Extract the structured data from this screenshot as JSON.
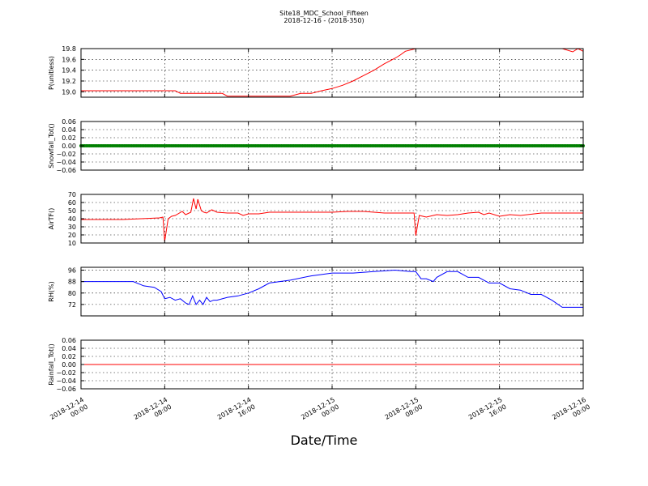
{
  "figure": {
    "title": "Site18_MDC_School_Fifteen",
    "subtitle": "2018-12-16 - (2018-350)",
    "xlabel": "Date/Time"
  },
  "chart_data": [
    {
      "type": "line",
      "ylabel": "P(unitless)",
      "color": "#ff0000",
      "ylim": [
        18.9,
        19.8
      ],
      "yticks": [
        19.0,
        19.2,
        19.4,
        19.6,
        19.8
      ],
      "ytick_labels": [
        "19.0",
        "19.2",
        "19.4",
        "19.6",
        "19.8"
      ],
      "grid": true,
      "x": [
        "2018-12-14 00:00",
        "2018-12-14 07:00",
        "2018-12-14 08:00",
        "2018-12-14 09:00",
        "2018-12-14 09:30",
        "2018-12-14 11:00",
        "2018-12-14 12:00",
        "2018-12-14 13:00",
        "2018-12-14 13:30",
        "2018-12-14 14:00",
        "2018-12-14 15:00",
        "2018-12-14 18:00",
        "2018-12-14 20:00",
        "2018-12-14 21:00",
        "2018-12-14 22:00",
        "2018-12-14 23:00",
        "2018-12-15 00:00",
        "2018-12-15 01:00",
        "2018-12-15 02:00",
        "2018-12-15 03:00",
        "2018-12-15 04:00",
        "2018-12-15 05:00",
        "2018-12-15 06:00",
        "2018-12-15 06:30",
        "2018-12-15 07:00",
        "2018-12-15 08:00",
        "2018-12-15 12:00",
        "2018-12-15 18:00",
        "2018-12-15 22:00",
        "2018-12-15 23:00",
        "2018-12-15 23:30",
        "2018-12-16 00:00"
      ],
      "y": [
        19.02,
        19.02,
        19.02,
        19.02,
        18.97,
        18.97,
        18.97,
        18.97,
        18.97,
        18.92,
        18.92,
        18.92,
        18.92,
        18.97,
        18.97,
        19.02,
        19.06,
        19.12,
        19.2,
        19.3,
        19.4,
        19.52,
        19.62,
        19.68,
        19.75,
        19.8,
        19.8,
        19.8,
        19.8,
        19.74,
        19.8,
        19.75
      ]
    },
    {
      "type": "scatter",
      "ylabel": "Snowfall_Tot()",
      "color": "#008000",
      "ylim": [
        -0.06,
        0.06
      ],
      "yticks": [
        -0.06,
        -0.04,
        -0.02,
        0.0,
        0.02,
        0.04,
        0.06
      ],
      "ytick_labels": [
        "−0.06",
        "−0.04",
        "−0.02",
        "0.00",
        "0.02",
        "0.04",
        "0.06"
      ],
      "grid": true,
      "x": [
        "2018-12-14 00:00",
        "2018-12-16 00:00"
      ],
      "y": [
        0.0,
        0.0
      ],
      "note_marker_every_minutes": 10
    },
    {
      "type": "line",
      "ylabel": "AirTF()",
      "color": "#ff0000",
      "ylim": [
        10,
        70
      ],
      "yticks": [
        10,
        20,
        30,
        40,
        50,
        60,
        70
      ],
      "ytick_labels": [
        "10",
        "20",
        "30",
        "40",
        "50",
        "60",
        "70"
      ],
      "grid": true,
      "x": [
        "2018-12-14 00:00",
        "2018-12-14 04:00",
        "2018-12-14 07:30",
        "2018-12-14 07:50",
        "2018-12-14 08:00",
        "2018-12-14 08:20",
        "2018-12-14 08:40",
        "2018-12-14 09:00",
        "2018-12-14 09:40",
        "2018-12-14 10:00",
        "2018-12-14 10:30",
        "2018-12-14 10:45",
        "2018-12-14 11:00",
        "2018-12-14 11:10",
        "2018-12-14 11:30",
        "2018-12-14 11:45",
        "2018-12-14 12:00",
        "2018-12-14 12:30",
        "2018-12-14 13:00",
        "2018-12-14 14:00",
        "2018-12-14 15:00",
        "2018-12-14 15:30",
        "2018-12-14 16:00",
        "2018-12-14 17:00",
        "2018-12-14 18:00",
        "2018-12-14 20:00",
        "2018-12-15 00:00",
        "2018-12-15 01:30",
        "2018-12-15 03:00",
        "2018-12-15 05:00",
        "2018-12-15 07:50",
        "2018-12-15 08:00",
        "2018-12-15 08:20",
        "2018-12-15 09:00",
        "2018-12-15 10:00",
        "2018-12-15 11:00",
        "2018-12-15 12:00",
        "2018-12-15 13:00",
        "2018-12-15 14:00",
        "2018-12-15 14:30",
        "2018-12-15 15:00",
        "2018-12-15 16:00",
        "2018-12-15 17:00",
        "2018-12-15 18:00",
        "2018-12-15 20:00",
        "2018-12-15 22:00",
        "2018-12-16 00:00"
      ],
      "y": [
        39,
        39,
        41,
        42,
        12,
        40,
        43,
        44,
        49,
        45,
        48,
        65,
        52,
        64,
        50,
        48,
        47,
        51,
        48,
        47,
        47,
        44,
        46,
        46,
        48,
        48,
        48,
        49,
        49,
        47,
        47,
        19,
        44,
        42,
        45,
        44,
        45,
        47,
        48,
        45,
        47,
        43,
        45,
        44,
        47,
        47,
        47
      ]
    },
    {
      "type": "line",
      "ylabel": "RH(%)",
      "color": "#0000ff",
      "ylim": [
        64,
        98
      ],
      "yticks": [
        72,
        80,
        88,
        96
      ],
      "ytick_labels": [
        "72",
        "80",
        "88",
        "96"
      ],
      "grid": true,
      "x": [
        "2018-12-14 00:00",
        "2018-12-14 02:00",
        "2018-12-14 04:00",
        "2018-12-14 05:00",
        "2018-12-14 06:00",
        "2018-12-14 07:00",
        "2018-12-14 07:40",
        "2018-12-14 08:00",
        "2018-12-14 08:30",
        "2018-12-14 09:00",
        "2018-12-14 09:30",
        "2018-12-14 10:00",
        "2018-12-14 10:20",
        "2018-12-14 10:40",
        "2018-12-14 11:00",
        "2018-12-14 11:20",
        "2018-12-14 11:40",
        "2018-12-14 12:00",
        "2018-12-14 12:20",
        "2018-12-14 12:40",
        "2018-12-14 13:00",
        "2018-12-14 14:00",
        "2018-12-14 15:00",
        "2018-12-14 16:00",
        "2018-12-14 17:00",
        "2018-12-14 18:00",
        "2018-12-14 20:00",
        "2018-12-14 22:00",
        "2018-12-15 00:00",
        "2018-12-15 02:00",
        "2018-12-15 04:00",
        "2018-12-15 06:00",
        "2018-12-15 07:30",
        "2018-12-15 08:00",
        "2018-12-15 08:30",
        "2018-12-15 09:00",
        "2018-12-15 09:40",
        "2018-12-15 10:00",
        "2018-12-15 11:00",
        "2018-12-15 12:00",
        "2018-12-15 13:00",
        "2018-12-15 14:00",
        "2018-12-15 15:00",
        "2018-12-15 16:00",
        "2018-12-15 17:00",
        "2018-12-15 18:00",
        "2018-12-15 19:00",
        "2018-12-15 20:00",
        "2018-12-15 21:00",
        "2018-12-15 22:00",
        "2018-12-15 23:00",
        "2018-12-16 00:00"
      ],
      "y": [
        88,
        88,
        88,
        88,
        85,
        84,
        81,
        76,
        77,
        75,
        76,
        73,
        72,
        78,
        72,
        75,
        72,
        77,
        74,
        75,
        75,
        77,
        78,
        80,
        83,
        87,
        89,
        92,
        94,
        94,
        95,
        96,
        95,
        95,
        90,
        90,
        88,
        91,
        95,
        95,
        91,
        91,
        87,
        87,
        83,
        82,
        79,
        79,
        75,
        70,
        70,
        70
      ]
    },
    {
      "type": "line",
      "ylabel": "Rainfall_Tot()",
      "color": "#ff0000",
      "ylim": [
        -0.06,
        0.06
      ],
      "yticks": [
        -0.06,
        -0.04,
        -0.02,
        0.0,
        0.02,
        0.04,
        0.06
      ],
      "ytick_labels": [
        "−0.06",
        "−0.04",
        "−0.02",
        "0.00",
        "0.02",
        "0.04",
        "0.06"
      ],
      "grid": true,
      "x": [
        "2018-12-14 00:00",
        "2018-12-16 00:00"
      ],
      "y": [
        0.0,
        0.0
      ]
    }
  ],
  "x_axis": {
    "start": "2018-12-14 00:00",
    "end": "2018-12-16 00:00",
    "ticks": [
      {
        "line1": "2018-12-14",
        "line2": "00:00"
      },
      {
        "line1": "2018-12-14",
        "line2": "08:00"
      },
      {
        "line1": "2018-12-14",
        "line2": "16:00"
      },
      {
        "line1": "2018-12-15",
        "line2": "00:00"
      },
      {
        "line1": "2018-12-15",
        "line2": "08:00"
      },
      {
        "line1": "2018-12-15",
        "line2": "16:00"
      },
      {
        "line1": "2018-12-16",
        "line2": "00:00"
      }
    ]
  }
}
